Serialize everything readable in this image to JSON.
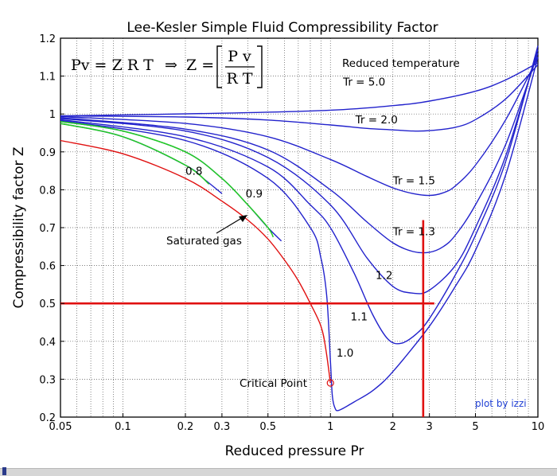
{
  "chart_data": {
    "type": "line",
    "title": "Lee-Kesler Simple Fluid Compressibility Factor",
    "xlabel": "Reduced pressure Pr",
    "ylabel": "Compressibility factor Z",
    "xscale": "log",
    "xlim": [
      0.05,
      10
    ],
    "ylim": [
      0.2,
      1.2
    ],
    "xticks": [
      {
        "v": 0.05,
        "label": "0.05"
      },
      {
        "v": 0.1,
        "label": "0.1"
      },
      {
        "v": 0.2,
        "label": "0.2"
      },
      {
        "v": 0.3,
        "label": "0.3"
      },
      {
        "v": 0.5,
        "label": "0.5"
      },
      {
        "v": 1,
        "label": "1"
      },
      {
        "v": 2,
        "label": "2"
      },
      {
        "v": 3,
        "label": "3"
      },
      {
        "v": 5,
        "label": "5"
      },
      {
        "v": 10,
        "label": "10"
      }
    ],
    "yticks": [
      {
        "v": 0.2,
        "label": "0.2"
      },
      {
        "v": 0.3,
        "label": "0.3"
      },
      {
        "v": 0.4,
        "label": "0.4"
      },
      {
        "v": 0.5,
        "label": "0.5"
      },
      {
        "v": 0.6,
        "label": "0.6"
      },
      {
        "v": 0.7,
        "label": "0.7"
      },
      {
        "v": 0.8,
        "label": "0.8"
      },
      {
        "v": 0.9,
        "label": "0.9"
      },
      {
        "v": 1,
        "label": "1"
      },
      {
        "v": 1.1,
        "label": "1.1"
      },
      {
        "v": 1.2,
        "label": "1.2"
      }
    ],
    "grid": true,
    "equation": {
      "lhs": "Pv = Z R T",
      "arrow": "⇒",
      "z": "Z =",
      "num": "P v",
      "den": "R T"
    },
    "legend_title": "Reduced temperature",
    "credit": "plot by izzi",
    "colors": {
      "isotherm": "#2222cc",
      "saturated": "#e01010",
      "subcritical": "#22cc22",
      "reference": "#e01010"
    },
    "series": [
      {
        "label": "Tr = 5.0",
        "color": "#2222cc",
        "x": [
          0.05,
          0.3,
          1,
          2,
          3,
          5,
          7,
          10
        ],
        "y": [
          0.995,
          1.002,
          1.01,
          1.022,
          1.034,
          1.06,
          1.09,
          1.135
        ]
      },
      {
        "label": "Tr = 2.0",
        "color": "#2222cc",
        "x": [
          0.05,
          0.2,
          0.5,
          1,
          1.5,
          2,
          2.5,
          3,
          4,
          5,
          7,
          10
        ],
        "y": [
          0.995,
          0.992,
          0.984,
          0.971,
          0.962,
          0.958,
          0.955,
          0.956,
          0.965,
          0.985,
          1.04,
          1.13
        ]
      },
      {
        "label": "Tr = 1.5",
        "color": "#2222cc",
        "x": [
          0.05,
          0.2,
          0.5,
          1,
          1.5,
          2,
          2.5,
          3,
          3.5,
          4,
          5,
          7,
          10
        ],
        "y": [
          0.993,
          0.975,
          0.94,
          0.88,
          0.835,
          0.805,
          0.79,
          0.785,
          0.792,
          0.81,
          0.865,
          0.985,
          1.15
        ]
      },
      {
        "label": "Tr = 1.3",
        "color": "#2222cc",
        "x": [
          0.05,
          0.2,
          0.5,
          1,
          1.5,
          2,
          2.5,
          3,
          3.5,
          4,
          5,
          7,
          10
        ],
        "y": [
          0.99,
          0.96,
          0.905,
          0.8,
          0.715,
          0.66,
          0.637,
          0.635,
          0.65,
          0.68,
          0.76,
          0.92,
          1.16
        ]
      },
      {
        "label": "1.2",
        "color": "#2222cc",
        "x": [
          0.05,
          0.2,
          0.5,
          1,
          1.5,
          2,
          2.5,
          3,
          4,
          5,
          7,
          10
        ],
        "y": [
          0.988,
          0.955,
          0.885,
          0.76,
          0.62,
          0.545,
          0.527,
          0.535,
          0.6,
          0.7,
          0.89,
          1.17
        ]
      },
      {
        "label": "1.1",
        "color": "#2222cc",
        "x": [
          0.05,
          0.2,
          0.5,
          0.8,
          1,
          1.3,
          1.6,
          1.9,
          2.2,
          2.6,
          3,
          4,
          5,
          7,
          10
        ],
        "y": [
          0.985,
          0.94,
          0.86,
          0.76,
          0.7,
          0.58,
          0.47,
          0.405,
          0.395,
          0.42,
          0.46,
          0.575,
          0.68,
          0.875,
          1.18
        ]
      },
      {
        "label": "1.0",
        "color": "#2222cc",
        "x": [
          0.05,
          0.2,
          0.5,
          0.8,
          0.9,
          0.96,
          1,
          1.02,
          1.05,
          1.1,
          1.3,
          1.6,
          2,
          3,
          4,
          5,
          7,
          10
        ],
        "y": [
          0.983,
          0.93,
          0.83,
          0.7,
          0.62,
          0.52,
          0.35,
          0.26,
          0.225,
          0.218,
          0.24,
          0.27,
          0.32,
          0.44,
          0.545,
          0.64,
          0.84,
          1.15
        ]
      },
      {
        "label": "0.9",
        "color": "#2222cc",
        "x": [
          0.05,
          0.1,
          0.2,
          0.3,
          0.4,
          0.5,
          0.58
        ],
        "y": [
          0.98,
          0.955,
          0.9,
          0.83,
          0.76,
          0.7,
          0.665
        ]
      },
      {
        "label": "0.8",
        "color": "#2222cc",
        "x": [
          0.05,
          0.1,
          0.2,
          0.25,
          0.3
        ],
        "y": [
          0.975,
          0.94,
          0.865,
          0.825,
          0.79
        ]
      }
    ],
    "subcritical_green": [
      {
        "x": [
          0.05,
          0.1,
          0.2,
          0.26
        ],
        "y": [
          0.975,
          0.94,
          0.865,
          0.815
        ]
      },
      {
        "x": [
          0.05,
          0.1,
          0.2,
          0.3,
          0.4,
          0.5,
          0.53
        ],
        "y": [
          0.98,
          0.955,
          0.9,
          0.83,
          0.76,
          0.7,
          0.675
        ]
      }
    ],
    "saturated_gas": {
      "x": [
        0.05,
        0.1,
        0.2,
        0.3,
        0.4,
        0.5,
        0.6,
        0.7,
        0.8,
        0.9,
        0.95,
        1
      ],
      "y": [
        0.93,
        0.895,
        0.83,
        0.77,
        0.72,
        0.67,
        0.615,
        0.56,
        0.5,
        0.44,
        0.38,
        0.29
      ]
    },
    "critical_point": {
      "x": 1,
      "y": 0.29,
      "label": "Critical Point"
    },
    "saturated_label": "Saturated gas",
    "reference_lines": {
      "z": 0.5,
      "pr": 2.8,
      "pr_ztop": 0.72
    },
    "curve_labels": [
      {
        "text": "Tr = 5.0",
        "x": 1.15,
        "y": 1.075
      },
      {
        "text": "Tr = 2.0",
        "x": 1.32,
        "y": 0.975
      },
      {
        "text": "Tr = 1.5",
        "x": 2.0,
        "y": 0.815
      },
      {
        "text": "Tr = 1.3",
        "x": 2.0,
        "y": 0.68
      },
      {
        "text": "1.2",
        "x": 1.65,
        "y": 0.565
      },
      {
        "text": "1.1",
        "x": 1.25,
        "y": 0.455
      },
      {
        "text": "1.0",
        "x": 1.07,
        "y": 0.36
      },
      {
        "text": "0.9",
        "x": 0.39,
        "y": 0.78
      },
      {
        "text": "0.8",
        "x": 0.2,
        "y": 0.84
      }
    ]
  }
}
